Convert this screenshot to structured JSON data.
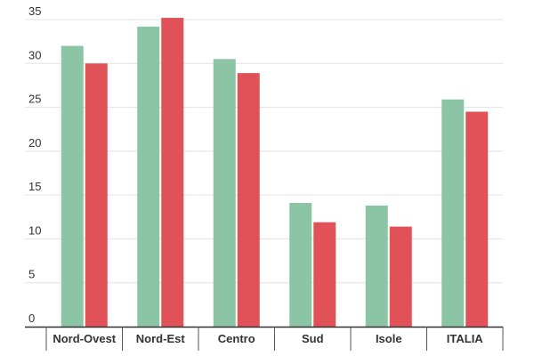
{
  "chart_data": {
    "type": "bar",
    "categories": [
      "Nord-Ovest",
      "Nord-Est",
      "Centro",
      "Sud",
      "Isole",
      "ITALIA"
    ],
    "series": [
      {
        "values": [
          32.0,
          34.2,
          30.5,
          14.1,
          13.8,
          25.9
        ],
        "color": "#8cc4a6"
      },
      {
        "values": [
          30.0,
          35.2,
          28.9,
          11.9,
          11.4,
          24.5
        ],
        "color": "#e05257"
      }
    ],
    "ylim": [
      0,
      35
    ],
    "yticks": [
      0,
      5,
      10,
      15,
      20,
      25,
      30,
      35
    ],
    "grid": true,
    "title": "",
    "xlabel": "",
    "ylabel": ""
  }
}
